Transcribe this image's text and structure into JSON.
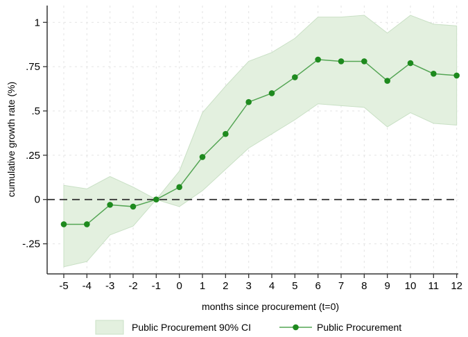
{
  "chart_data": {
    "type": "line",
    "title": "",
    "xlabel": "months since procurement (t=0)",
    "ylabel": "cumulative growth rate (%)",
    "x": [
      -5,
      -4,
      -3,
      -2,
      -1,
      0,
      1,
      2,
      3,
      4,
      5,
      6,
      7,
      8,
      9,
      10,
      11,
      12
    ],
    "xtick_labels": [
      "-5",
      "-4",
      "-3",
      "-2",
      "-1",
      "0",
      "1",
      "2",
      "3",
      "4",
      "5",
      "6",
      "7",
      "8",
      "9",
      "10",
      "11",
      "12"
    ],
    "series": [
      {
        "name": "Public Procurement",
        "values": [
          -0.14,
          -0.14,
          -0.03,
          -0.04,
          0,
          0.07,
          0.24,
          0.37,
          0.55,
          0.6,
          0.69,
          0.79,
          0.78,
          0.78,
          0.67,
          0.77,
          0.71,
          0.7
        ]
      }
    ],
    "band": {
      "name": "Public Procurement 90% CI",
      "upper": [
        0.08,
        0.06,
        0.13,
        0.07,
        0,
        0.16,
        0.49,
        0.64,
        0.78,
        0.83,
        0.91,
        1.03,
        1.03,
        1.04,
        0.94,
        1.04,
        0.99,
        0.98
      ],
      "lower": [
        -0.38,
        -0.35,
        -0.2,
        -0.15,
        0,
        -0.04,
        0.05,
        0.17,
        0.29,
        0.37,
        0.45,
        0.54,
        0.53,
        0.52,
        0.41,
        0.49,
        0.43,
        0.42
      ]
    },
    "yticks": [
      -0.25,
      0,
      0.25,
      0.5,
      0.75,
      1
    ],
    "ytick_labels": [
      "-.25",
      "0",
      ".25",
      ".5",
      ".75",
      "1"
    ],
    "ylim": [
      -0.42,
      1.095
    ],
    "xlim": [
      -5.72,
      12.07
    ],
    "grid": true,
    "zero_line_dashed": true,
    "legend_position": "bottom",
    "legend": [
      {
        "swatch": "band-swatch",
        "label": "Public Procurement 90% CI"
      },
      {
        "swatch": "line-marker-swatch",
        "label": "Public Procurement"
      }
    ],
    "colors": {
      "line": "#54a554",
      "marker": "#1e8a1e",
      "band_fill": "#e3f0df",
      "band_edge": "#c9e0c5",
      "grid": "#e3e3e3",
      "axis": "#333333",
      "zero_line": "#2b2b2b",
      "text": "#000000"
    }
  }
}
